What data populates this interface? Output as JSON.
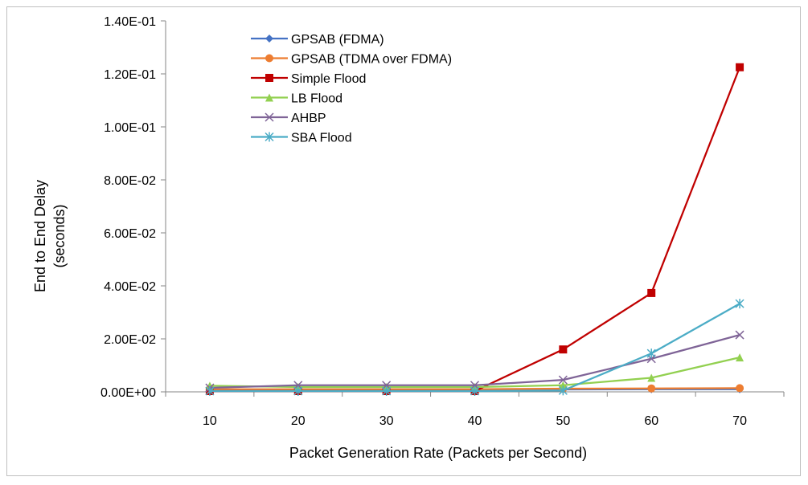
{
  "chart_data": {
    "type": "line",
    "title": "",
    "xlabel": "Packet Generation Rate (Packets per Second)",
    "ylabel_lines": [
      "End to End Delay",
      "(seconds)"
    ],
    "categories": [
      10,
      20,
      30,
      40,
      50,
      60,
      70
    ],
    "x_tick_labels": [
      "10",
      "20",
      "30",
      "40",
      "50",
      "60",
      "70"
    ],
    "ylim": [
      0,
      0.14
    ],
    "y_ticks": [
      0,
      0.02,
      0.04,
      0.06,
      0.08,
      0.1,
      0.12,
      0.14
    ],
    "y_tick_labels": [
      "0.00E+00",
      "2.00E-02",
      "4.00E-02",
      "6.00E-02",
      "8.00E-02",
      "1.00E-01",
      "1.20E-01",
      "1.40E-01"
    ],
    "grid": false,
    "legend_position": "top-left",
    "series": [
      {
        "name": "GPSAB (FDMA)",
        "color": "#4472c4",
        "marker": "diamond",
        "values": [
          0.0008,
          0.0009,
          0.0009,
          0.0009,
          0.0009,
          0.001,
          0.001
        ]
      },
      {
        "name": "GPSAB (TDMA over FDMA)",
        "color": "#ed7d31",
        "marker": "circle",
        "values": [
          0.001,
          0.001,
          0.001,
          0.001,
          0.0012,
          0.0013,
          0.0014
        ]
      },
      {
        "name": "Simple Flood",
        "color": "#c00000",
        "marker": "square",
        "values": [
          0.0003,
          0.0003,
          0.0003,
          0.0003,
          0.016,
          0.0373,
          0.1225
        ]
      },
      {
        "name": "LB Flood",
        "color": "#92d050",
        "marker": "triangle",
        "values": [
          0.0023,
          0.0018,
          0.0018,
          0.0018,
          0.0025,
          0.0053,
          0.013
        ]
      },
      {
        "name": "AHBP",
        "color": "#7f6497",
        "marker": "x",
        "values": [
          0.0015,
          0.0025,
          0.0025,
          0.0025,
          0.0045,
          0.0125,
          0.0215
        ]
      },
      {
        "name": "SBA Flood",
        "color": "#4bacc6",
        "marker": "star",
        "values": [
          0.0003,
          0.0003,
          0.0003,
          0.0003,
          0.0005,
          0.0145,
          0.0333
        ]
      }
    ]
  }
}
